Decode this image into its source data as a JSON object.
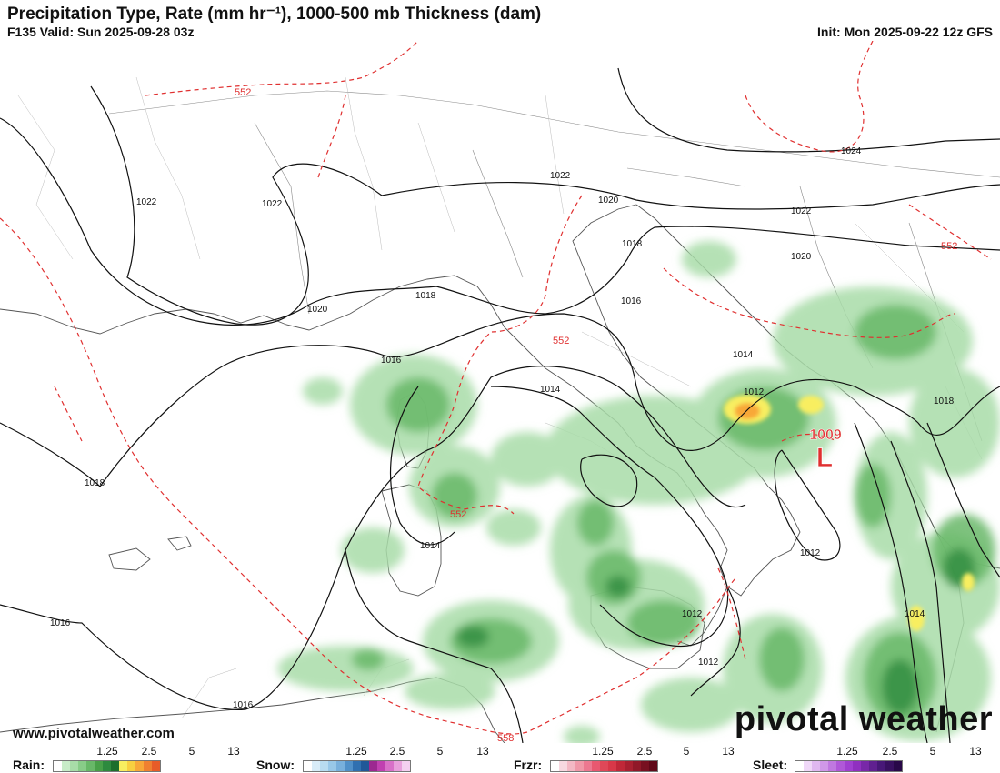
{
  "header": {
    "title": "Precipitation Type, Rate (mm hr⁻¹), 1000-500 mb Thickness (dam)",
    "valid": "F135 Valid: Sun 2025-09-28 03z",
    "init": "Init: Mon 2025-09-22 12z GFS"
  },
  "map": {
    "low_center": {
      "pressure": "1009",
      "symbol": "L"
    },
    "isobar_labels": [
      "1024",
      "1022",
      "1022",
      "1022",
      "1022",
      "1020",
      "1020",
      "1020",
      "1018",
      "1018",
      "1018",
      "1018",
      "1016",
      "1016",
      "1016",
      "1016",
      "1014",
      "1014",
      "1014",
      "1014",
      "1012",
      "1012",
      "1012",
      "1012"
    ],
    "thickness_labels": [
      "552",
      "552",
      "552",
      "552",
      "558"
    ]
  },
  "footer": {
    "website": "www.pivotalweather.com",
    "brand": "pivotal weather"
  },
  "legend": {
    "rain": {
      "label": "Rain:",
      "ticks": [
        "1.25",
        "2.5",
        "5",
        "13"
      ],
      "colors": [
        "#ffffff",
        "#c8ecc8",
        "#a8dca8",
        "#88cc88",
        "#68b868",
        "#48a048",
        "#2e8a3e",
        "#1c6e2c",
        "#f8ee60",
        "#f8d040",
        "#f8a838",
        "#f08030",
        "#e85c28"
      ]
    },
    "snow": {
      "label": "Snow:",
      "ticks": [
        "1.25",
        "2.5",
        "5",
        "13"
      ],
      "colors": [
        "#ffffff",
        "#d8ecf8",
        "#b8dcf0",
        "#98c8e8",
        "#78b0dc",
        "#5090c8",
        "#3070b0",
        "#205898",
        "#9c2890",
        "#c040b0",
        "#d870c8",
        "#e8a0dc",
        "#f4d0f0"
      ]
    },
    "frzr": {
      "label": "Frzr:",
      "ticks": [
        "1.25",
        "2.5",
        "5",
        "13"
      ],
      "colors": [
        "#ffffff",
        "#f8d8e0",
        "#f4b8c4",
        "#f098a8",
        "#ec7890",
        "#e85870",
        "#e04858",
        "#d83848",
        "#c02838",
        "#a82030",
        "#901828",
        "#781020",
        "#600818"
      ]
    },
    "sleet": {
      "label": "Sleet:",
      "ticks": [
        "1.25",
        "2.5",
        "5",
        "13"
      ],
      "colors": [
        "#ffffff",
        "#f0d8f8",
        "#e0b8f0",
        "#d098e8",
        "#c078e0",
        "#b058d8",
        "#a040d0",
        "#9030c0",
        "#7828a8",
        "#602090",
        "#481878",
        "#381060",
        "#280848"
      ]
    }
  }
}
